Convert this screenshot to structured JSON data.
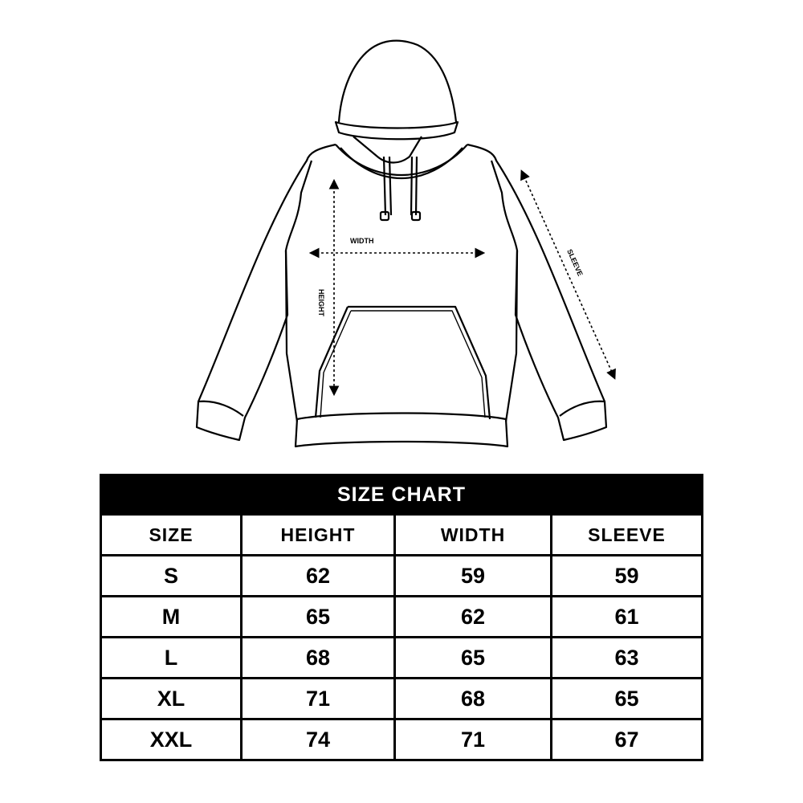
{
  "diagram": {
    "labels": {
      "width": "WIDTH",
      "height": "HEIGHT",
      "sleeve": "SLEEVE"
    }
  },
  "size_chart": {
    "title": "SIZE CHART",
    "columns": [
      "SIZE",
      "HEIGHT",
      "WIDTH",
      "SLEEVE"
    ],
    "rows": [
      [
        "S",
        "62",
        "59",
        "59"
      ],
      [
        "M",
        "65",
        "62",
        "61"
      ],
      [
        "L",
        "68",
        "65",
        "63"
      ],
      [
        "XL",
        "71",
        "68",
        "65"
      ],
      [
        "XXL",
        "74",
        "71",
        "67"
      ]
    ]
  }
}
